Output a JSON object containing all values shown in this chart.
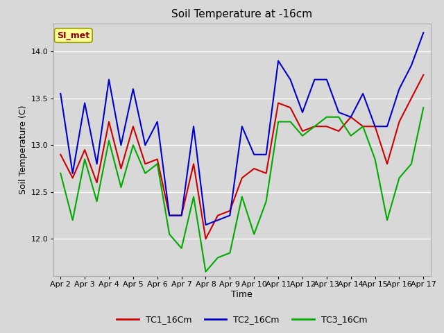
{
  "title": "Soil Temperature at -16cm",
  "xlabel": "Time",
  "ylabel": "Soil Temperature (C)",
  "ylim": [
    11.6,
    14.3
  ],
  "background_color": "#d8d8d8",
  "plot_bg_color": "#d8d8d8",
  "grid_color": "#ffffff",
  "annotation_label": "SI_met",
  "annotation_text_color": "#8b0000",
  "annotation_bg_color": "#ffff99",
  "annotation_border_color": "#999900",
  "x_tick_labels": [
    "Apr 2",
    "Apr 3",
    "Apr 4",
    "Apr 5",
    "Apr 6",
    "Apr 7",
    "Apr 8",
    "Apr 9",
    "Apr 10",
    "Apr 11",
    "Apr 12",
    "Apr 13",
    "Apr 14",
    "Apr 15",
    "Apr 16",
    "Apr 17"
  ],
  "series": {
    "TC1_16Cm": {
      "color": "#cc0000",
      "linewidth": 1.5
    },
    "TC2_16Cm": {
      "color": "#0000cc",
      "linewidth": 1.5
    },
    "TC3_16Cm": {
      "color": "#00aa00",
      "linewidth": 1.5
    }
  },
  "TC1_x": [
    0,
    0.5,
    1.0,
    1.5,
    2.0,
    2.5,
    3.0,
    3.5,
    4.0,
    4.5,
    5.0,
    5.5,
    6.0,
    6.5,
    7.0,
    7.5,
    8.0,
    8.5,
    9.0,
    9.5,
    10.0,
    10.5,
    11.0,
    11.5,
    12.0,
    12.5,
    13.0,
    13.5,
    14.0,
    14.5,
    15.0
  ],
  "TC1_y": [
    12.9,
    12.65,
    12.95,
    12.6,
    13.25,
    12.75,
    13.2,
    12.8,
    12.85,
    12.25,
    12.25,
    12.8,
    12.0,
    12.25,
    12.3,
    12.65,
    12.75,
    12.7,
    13.45,
    13.4,
    13.15,
    13.2,
    13.2,
    13.15,
    13.3,
    13.2,
    13.2,
    12.8,
    13.25,
    13.5,
    13.75
  ],
  "TC2_x": [
    0,
    0.5,
    1.0,
    1.5,
    2.0,
    2.5,
    3.0,
    3.5,
    4.0,
    4.5,
    5.0,
    5.5,
    6.0,
    6.5,
    7.0,
    7.5,
    8.0,
    8.5,
    9.0,
    9.5,
    10.0,
    10.5,
    11.0,
    11.5,
    12.0,
    12.5,
    13.0,
    13.5,
    14.0,
    14.5,
    15.0
  ],
  "TC2_y": [
    13.55,
    12.7,
    13.45,
    12.8,
    13.7,
    13.0,
    13.6,
    13.0,
    13.25,
    12.25,
    12.25,
    13.2,
    12.15,
    12.2,
    12.25,
    13.2,
    12.9,
    12.9,
    13.9,
    13.7,
    13.35,
    13.7,
    13.7,
    13.35,
    13.3,
    13.55,
    13.2,
    13.2,
    13.6,
    13.85,
    14.2
  ],
  "TC3_x": [
    0,
    0.5,
    1.0,
    1.5,
    2.0,
    2.5,
    3.0,
    3.5,
    4.0,
    4.5,
    5.0,
    5.5,
    6.0,
    6.5,
    7.0,
    7.5,
    8.0,
    8.5,
    9.0,
    9.5,
    10.0,
    10.5,
    11.0,
    11.5,
    12.0,
    12.5,
    13.0,
    13.5,
    14.0,
    14.5,
    15.0
  ],
  "TC3_y": [
    12.7,
    12.2,
    12.85,
    12.4,
    13.05,
    12.55,
    13.0,
    12.7,
    12.8,
    12.05,
    11.9,
    12.45,
    11.65,
    11.8,
    11.85,
    12.45,
    12.05,
    12.4,
    13.25,
    13.25,
    13.1,
    13.2,
    13.3,
    13.3,
    13.1,
    13.2,
    12.85,
    12.2,
    12.65,
    12.8,
    13.4
  ],
  "xtick_positions": [
    0,
    1,
    2,
    3,
    4,
    5,
    6,
    7,
    8,
    9,
    10,
    11,
    12,
    13,
    14,
    15
  ],
  "title_fontsize": 11,
  "label_fontsize": 9,
  "tick_fontsize": 8
}
